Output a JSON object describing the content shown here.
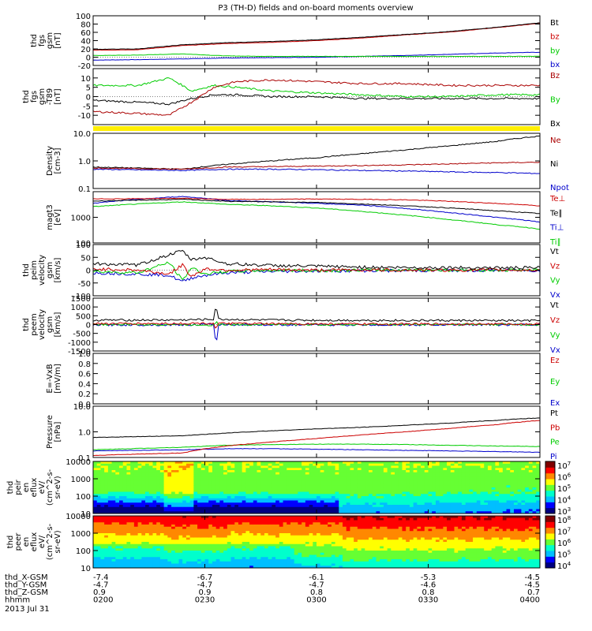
{
  "title": "P3 (TH-D) fields and on-board moments overview",
  "chart_data": [
    {
      "id": "p1",
      "type": "line",
      "ylabel": [
        "thd",
        "fgs",
        "gsm",
        "[nT]"
      ],
      "ylim": [
        -20,
        100
      ],
      "scale": "linear",
      "yticks": [
        "100",
        "80",
        "60",
        "40",
        "20",
        "0",
        "-20"
      ],
      "ytick_values": [
        100,
        80,
        60,
        40,
        20,
        0,
        -20
      ],
      "legend": [
        "Bt",
        "bz",
        "by",
        "bx"
      ],
      "colors": [
        "#000000",
        "#cc0000",
        "#00cc00",
        "#0000cc"
      ],
      "series": [
        {
          "name": "Bt",
          "x": [
            0,
            0.1,
            0.2,
            0.3,
            0.4,
            0.5,
            0.6,
            0.7,
            0.8,
            0.9,
            1.0
          ],
          "y": [
            19,
            20,
            30,
            35,
            38,
            42,
            48,
            55,
            62,
            72,
            83
          ]
        },
        {
          "name": "bz",
          "x": [
            0,
            0.1,
            0.2,
            0.3,
            0.4,
            0.5,
            0.6,
            0.7,
            0.8,
            0.9,
            1.0
          ],
          "y": [
            17,
            18,
            28,
            33,
            36,
            40,
            46,
            54,
            61,
            71,
            82
          ]
        },
        {
          "name": "by",
          "x": [
            0,
            0.1,
            0.2,
            0.3,
            0.4,
            0.5,
            0.6,
            0.7,
            0.8,
            0.9,
            1.0
          ],
          "y": [
            4,
            5,
            8,
            3,
            2,
            2,
            2,
            2,
            2,
            2,
            2
          ]
        },
        {
          "name": "bx",
          "x": [
            0,
            0.1,
            0.2,
            0.3,
            0.4,
            0.5,
            0.6,
            0.7,
            0.8,
            0.9,
            1.0
          ],
          "y": [
            -7,
            -6,
            -4,
            -2,
            -1,
            0,
            2,
            4,
            7,
            10,
            12
          ]
        }
      ]
    },
    {
      "id": "p2",
      "type": "line",
      "ylabel": [
        "thd",
        "fgs",
        "gsm",
        "-T89",
        "[nT]"
      ],
      "ylim": [
        -15,
        15
      ],
      "scale": "linear",
      "yticks": [
        "10",
        "5",
        "0",
        "-5",
        "-10"
      ],
      "ytick_values": [
        10,
        5,
        0,
        -5,
        -10
      ],
      "legend": [
        "Bz",
        "By",
        "Bx"
      ],
      "colors": [
        "#aa0000",
        "#00cc00",
        "#000000"
      ],
      "series": [
        {
          "name": "Bz",
          "x": [
            0,
            0.1,
            0.17,
            0.22,
            0.27,
            0.32,
            0.4,
            0.5,
            0.6,
            0.7,
            0.8,
            0.9,
            1.0
          ],
          "y": [
            -8,
            -9,
            -10,
            -3,
            5,
            8,
            9,
            8,
            7,
            7,
            6,
            6,
            6
          ]
        },
        {
          "name": "By",
          "x": [
            0,
            0.1,
            0.17,
            0.2,
            0.22,
            0.27,
            0.32,
            0.4,
            0.5,
            0.6,
            0.7,
            0.8,
            0.9,
            1.0
          ],
          "y": [
            6,
            6,
            10,
            6,
            3,
            6,
            5,
            3,
            2,
            1,
            0,
            0,
            1,
            1
          ]
        },
        {
          "name": "Bx",
          "x": [
            0,
            0.1,
            0.17,
            0.22,
            0.27,
            0.32,
            0.4,
            0.5,
            0.6,
            0.7,
            0.8,
            0.9,
            1.0
          ],
          "y": [
            -2,
            -3,
            -4,
            -1,
            1,
            1,
            0,
            0,
            -1,
            -1,
            -1,
            -1,
            -1
          ]
        }
      ]
    },
    {
      "id": "p3",
      "type": "line",
      "ylabel": [
        "Density",
        "[cm-3]"
      ],
      "ylim": [
        0.1,
        10
      ],
      "scale": "log",
      "yticks": [
        "10.0",
        "1.0",
        "0.1"
      ],
      "ytick_values": [
        10,
        1,
        0.1
      ],
      "legend": [
        "Ne",
        "Ni",
        "Npot"
      ],
      "colors": [
        "#aa0000",
        "#000000",
        "#0000cc"
      ],
      "series": [
        {
          "name": "Ne",
          "x": [
            0,
            0.2,
            0.3,
            0.4,
            0.5,
            0.6,
            0.7,
            0.8,
            0.9,
            1.0
          ],
          "y": [
            0.55,
            0.5,
            0.6,
            0.62,
            0.65,
            0.68,
            0.72,
            0.78,
            0.85,
            0.9
          ]
        },
        {
          "name": "Ni",
          "x": [
            0,
            0.2,
            0.3,
            0.4,
            0.5,
            0.6,
            0.7,
            0.8,
            0.9,
            1.0
          ],
          "y": [
            0.6,
            0.5,
            0.75,
            1.0,
            1.3,
            1.8,
            2.5,
            3.5,
            5.0,
            8.0
          ]
        },
        {
          "name": "Npot",
          "x": [
            0,
            0.2,
            0.3,
            0.4,
            0.5,
            0.6,
            0.7,
            0.8,
            0.9,
            1.0
          ],
          "y": [
            0.5,
            0.45,
            0.5,
            0.5,
            0.48,
            0.45,
            0.43,
            0.4,
            0.38,
            0.35
          ]
        }
      ]
    },
    {
      "id": "p4",
      "type": "line",
      "ylabel": [
        "magt3",
        "[eV]"
      ],
      "ylim": [
        100,
        10000
      ],
      "scale": "log",
      "yticks": [
        "1000",
        "100"
      ],
      "ytick_values": [
        1000,
        100
      ],
      "legend": [
        "Te⊥",
        "Te∥",
        "Ti⊥",
        "Ti∥"
      ],
      "colors": [
        "#cc0000",
        "#000000",
        "#0000cc",
        "#00cc00"
      ],
      "series": [
        {
          "name": "Te⊥",
          "x": [
            0,
            0.2,
            0.3,
            0.4,
            0.5,
            0.6,
            0.7,
            0.8,
            0.9,
            1.0
          ],
          "y": [
            5200,
            5500,
            5000,
            5000,
            5200,
            5000,
            4800,
            4200,
            3500,
            2800
          ]
        },
        {
          "name": "Te∥",
          "x": [
            0,
            0.2,
            0.3,
            0.4,
            0.5,
            0.6,
            0.7,
            0.8,
            0.9,
            1.0
          ],
          "y": [
            4300,
            5000,
            4200,
            4000,
            3800,
            3300,
            2800,
            2300,
            1800,
            1400
          ]
        },
        {
          "name": "Ti⊥",
          "x": [
            0,
            0.2,
            0.3,
            0.4,
            0.5,
            0.6,
            0.7,
            0.8,
            0.9,
            1.0
          ],
          "y": [
            3500,
            6500,
            4500,
            4000,
            3500,
            3000,
            2200,
            1500,
            1000,
            650
          ]
        },
        {
          "name": "Ti∥",
          "x": [
            0,
            0.2,
            0.3,
            0.4,
            0.5,
            0.6,
            0.7,
            0.8,
            0.9,
            1.0
          ],
          "y": [
            2600,
            4000,
            3200,
            2800,
            2300,
            1700,
            1200,
            800,
            520,
            350
          ]
        }
      ]
    },
    {
      "id": "p5",
      "type": "line",
      "ylabel": [
        "thd",
        "peim",
        "velocity",
        "gsm",
        "[km/s]"
      ],
      "ylim": [
        -100,
        100
      ],
      "scale": "linear",
      "yticks": [
        "100",
        "50",
        "0",
        "-50",
        "-100"
      ],
      "ytick_values": [
        100,
        50,
        0,
        -50,
        -100
      ],
      "legend": [
        "Vt",
        "Vz",
        "Vy",
        "Vx"
      ],
      "colors": [
        "#000000",
        "#cc0000",
        "#00cc00",
        "#0000cc"
      ],
      "series": [
        {
          "name": "Vt",
          "x": [
            0,
            0.1,
            0.17,
            0.2,
            0.22,
            0.25,
            0.3,
            0.4,
            0.5,
            0.6,
            0.7,
            0.8,
            0.9,
            1.0
          ],
          "y": [
            25,
            20,
            60,
            75,
            40,
            50,
            25,
            18,
            15,
            12,
            10,
            10,
            9,
            9
          ]
        },
        {
          "name": "Vz",
          "x": [
            0,
            0.1,
            0.17,
            0.2,
            0.22,
            0.25,
            0.3,
            0.4,
            0.5,
            0.6,
            0.7,
            0.8,
            0.9,
            1.0
          ],
          "y": [
            5,
            0,
            -15,
            20,
            -25,
            5,
            0,
            2,
            0,
            1,
            0,
            0,
            1,
            0
          ]
        },
        {
          "name": "Vy",
          "x": [
            0,
            0.1,
            0.17,
            0.2,
            0.22,
            0.25,
            0.3,
            0.4,
            0.5,
            0.6,
            0.7,
            0.8,
            0.9,
            1.0
          ],
          "y": [
            -5,
            -10,
            30,
            -40,
            10,
            -15,
            -5,
            0,
            -2,
            0,
            1,
            0,
            0,
            0
          ]
        },
        {
          "name": "Vx",
          "x": [
            0,
            0.1,
            0.17,
            0.2,
            0.22,
            0.25,
            0.3,
            0.4,
            0.5,
            0.6,
            0.7,
            0.8,
            0.9,
            1.0
          ],
          "y": [
            -10,
            -15,
            -20,
            -45,
            -30,
            -20,
            -10,
            -5,
            -3,
            -2,
            -2,
            -1,
            -1,
            -1
          ]
        }
      ]
    },
    {
      "id": "p6",
      "type": "line",
      "ylabel": [
        "thd",
        "peem",
        "velocity",
        "gsm",
        "[km/s]"
      ],
      "ylim": [
        -1500,
        1500
      ],
      "scale": "linear",
      "yticks": [
        "1500",
        "1000",
        "500",
        "0",
        "-500",
        "-1000",
        "-1500"
      ],
      "ytick_values": [
        1500,
        1000,
        500,
        0,
        -500,
        -1000,
        -1500
      ],
      "legend": [
        "Vt",
        "Vz",
        "Vy",
        "Vx"
      ],
      "colors": [
        "#000000",
        "#cc0000",
        "#00cc00",
        "#0000cc"
      ],
      "series": [
        {
          "name": "Vt",
          "x": [
            0,
            0.2,
            0.27,
            0.275,
            0.28,
            0.4,
            0.6,
            0.8,
            1.0
          ],
          "y": [
            250,
            260,
            300,
            1200,
            300,
            250,
            240,
            230,
            220
          ]
        },
        {
          "name": "Vz",
          "x": [
            0,
            0.2,
            0.27,
            0.275,
            0.28,
            0.4,
            0.6,
            0.8,
            1.0
          ],
          "y": [
            50,
            60,
            80,
            -300,
            60,
            40,
            30,
            30,
            30
          ]
        },
        {
          "name": "Vy",
          "x": [
            0,
            0.2,
            0.27,
            0.275,
            0.28,
            0.4,
            0.6,
            0.8,
            1.0
          ],
          "y": [
            10,
            0,
            -20,
            200,
            0,
            10,
            0,
            10,
            0
          ]
        },
        {
          "name": "Vx",
          "x": [
            0,
            0.2,
            0.27,
            0.275,
            0.28,
            0.4,
            0.6,
            0.8,
            1.0
          ],
          "y": [
            -20,
            -10,
            0,
            -1300,
            0,
            -10,
            -20,
            -10,
            -10
          ]
        }
      ]
    },
    {
      "id": "p7",
      "type": "line",
      "ylabel": [
        "E=-VxB",
        "[mV/m]"
      ],
      "ylim": [
        0,
        1
      ],
      "scale": "linear",
      "yticks": [
        "1.0",
        "0.8",
        "0.6",
        "0.4",
        "0.2",
        "0.0"
      ],
      "ytick_values": [
        1,
        0.8,
        0.6,
        0.4,
        0.2,
        0
      ],
      "legend": [
        "Ez",
        "Ey",
        "Ex"
      ],
      "colors": [
        "#cc0000",
        "#00cc00",
        "#0000cc"
      ],
      "series": []
    },
    {
      "id": "p8",
      "type": "line",
      "ylabel": [
        "Pressure",
        "[nPa]"
      ],
      "ylim": [
        0.1,
        10
      ],
      "scale": "log",
      "yticks": [
        "10.0",
        "1.0",
        "0.1"
      ],
      "ytick_values": [
        10,
        1,
        0.1
      ],
      "legend": [
        "Pt",
        "Pb",
        "Pe",
        "Pi"
      ],
      "colors": [
        "#000000",
        "#cc0000",
        "#00cc00",
        "#0000cc"
      ],
      "series": [
        {
          "name": "Pt",
          "x": [
            0,
            0.2,
            0.3,
            0.4,
            0.5,
            0.6,
            0.7,
            0.8,
            0.9,
            1.0
          ],
          "y": [
            0.6,
            0.7,
            0.9,
            1.1,
            1.3,
            1.5,
            1.8,
            2.2,
            2.8,
            3.5
          ]
        },
        {
          "name": "Pb",
          "x": [
            0,
            0.2,
            0.3,
            0.4,
            0.5,
            0.6,
            0.7,
            0.8,
            0.9,
            1.0
          ],
          "y": [
            0.12,
            0.15,
            0.28,
            0.4,
            0.55,
            0.75,
            1.0,
            1.35,
            1.9,
            2.8
          ]
        },
        {
          "name": "Pe",
          "x": [
            0,
            0.2,
            0.3,
            0.4,
            0.5,
            0.6,
            0.7,
            0.8,
            0.9,
            1.0
          ],
          "y": [
            0.2,
            0.25,
            0.3,
            0.32,
            0.33,
            0.33,
            0.32,
            0.3,
            0.28,
            0.27
          ]
        },
        {
          "name": "Pi",
          "x": [
            0,
            0.2,
            0.3,
            0.4,
            0.5,
            0.6,
            0.7,
            0.8,
            0.9,
            1.0
          ],
          "y": [
            0.18,
            0.2,
            0.22,
            0.22,
            0.21,
            0.2,
            0.19,
            0.18,
            0.17,
            0.16
          ]
        }
      ]
    },
    {
      "id": "p9",
      "type": "heatmap",
      "ylabel": [
        "thd",
        "peir",
        "en",
        "eflux",
        "eV/",
        "(cm^2-s-",
        "sr-eV)"
      ],
      "ylim": [
        10,
        10000
      ],
      "scale": "log",
      "yticks": [
        "10000",
        "1000",
        "100",
        "10"
      ],
      "ytick_values": [
        10000,
        1000,
        100,
        10
      ],
      "colorbar": [
        "10^7",
        "10^6",
        "10^5",
        "10^4",
        "10^3"
      ],
      "colormap": [
        "#000080",
        "#0000ff",
        "#00bfff",
        "#00ffcc",
        "#66ff33",
        "#ffff00",
        "#ff8800",
        "#ff0000",
        "#7f0000"
      ]
    },
    {
      "id": "p10",
      "type": "heatmap",
      "ylabel": [
        "thd",
        "peer",
        "en",
        "eflux",
        "eV/",
        "(cm^2-s-",
        "sr-eV)"
      ],
      "ylim": [
        10,
        10000
      ],
      "scale": "log",
      "yticks": [
        "10000",
        "1000",
        "100",
        "10"
      ],
      "ytick_values": [
        10000,
        1000,
        100,
        10
      ],
      "colorbar": [
        "10^8",
        "10^7",
        "10^6",
        "10^5",
        "10^4"
      ],
      "colormap": [
        "#000080",
        "#0000ff",
        "#00bfff",
        "#00ffcc",
        "#66ff33",
        "#ffff00",
        "#ff8800",
        "#ff0000",
        "#7f0000"
      ]
    }
  ],
  "time_axis": {
    "tick_labels": [
      "0200",
      "0230",
      "0300",
      "0330",
      "0400"
    ],
    "rows": [
      {
        "label": "thd_X-GSM",
        "values": [
          "-7.4",
          "-6.7",
          "-6.1",
          "-5.3",
          "-4.5"
        ]
      },
      {
        "label": "thd_Y-GSM",
        "values": [
          "-4.7",
          "-4.7",
          "-4.7",
          "-4.6",
          "-4.5"
        ]
      },
      {
        "label": "thd_Z-GSM",
        "values": [
          "0.9",
          "0.9",
          "0.8",
          "0.8",
          "0.7"
        ]
      },
      {
        "label": "hhmm",
        "values": [
          "0200",
          "0230",
          "0300",
          "0330",
          "0400"
        ]
      }
    ],
    "date": "2013 Jul 31"
  }
}
